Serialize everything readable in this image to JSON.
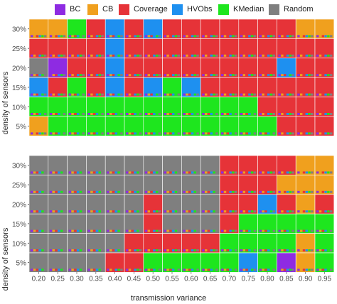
{
  "legend": [
    {
      "name": "BC",
      "color": "#8E2BE2"
    },
    {
      "name": "CB",
      "color": "#F0A01E"
    },
    {
      "name": "Coverage",
      "color": "#E63338"
    },
    {
      "name": "HVObs",
      "color": "#1E90F0"
    },
    {
      "name": "KMedian",
      "color": "#1EE61E"
    },
    {
      "name": "Random",
      "color": "#7F7F7F"
    }
  ],
  "chart_data": {
    "type": "heatmap",
    "xlabel": "transmission variance",
    "ylabel": "density of sensors",
    "x_ticks": [
      "0.20",
      "0.25",
      "0.30",
      "0.35",
      "0.40",
      "0.45",
      "0.50",
      "0.55",
      "0.60",
      "0.65",
      "0.70",
      "0.75",
      "0.80",
      "0.85",
      "0.90",
      "0.95"
    ],
    "y_ticks": [
      "5%",
      "10%",
      "15%",
      "20%",
      "25%",
      "30%"
    ],
    "series_order": [
      "BC",
      "CB",
      "Coverage",
      "HVObs",
      "KMedian",
      "Random"
    ],
    "note_rows": "rows listed from top (30%) to bottom (5%); each cell names the winning method",
    "panels": [
      {
        "winners": [
          [
            "CB",
            "CB",
            "KMedian",
            "Coverage",
            "HVObs",
            "Coverage",
            "HVObs",
            "Coverage",
            "Coverage",
            "Coverage",
            "Coverage",
            "Coverage",
            "Coverage",
            "Coverage",
            "CB",
            "CB"
          ],
          [
            "Coverage",
            "Coverage",
            "Coverage",
            "Coverage",
            "HVObs",
            "Coverage",
            "Coverage",
            "Coverage",
            "Coverage",
            "Coverage",
            "Coverage",
            "Coverage",
            "Coverage",
            "Coverage",
            "Coverage",
            "Coverage"
          ],
          [
            "Random",
            "BC",
            "Coverage",
            "Coverage",
            "HVObs",
            "Coverage",
            "Coverage",
            "Coverage",
            "Coverage",
            "Coverage",
            "Coverage",
            "Coverage",
            "Coverage",
            "HVObs",
            "Coverage",
            "Coverage"
          ],
          [
            "HVObs",
            "Coverage",
            "KMedian",
            "Coverage",
            "HVObs",
            "Coverage",
            "HVObs",
            "KMedian",
            "HVObs",
            "Coverage",
            "Coverage",
            "Coverage",
            "Coverage",
            "Coverage",
            "Coverage",
            "Coverage"
          ],
          [
            "KMedian",
            "KMedian",
            "KMedian",
            "KMedian",
            "KMedian",
            "KMedian",
            "KMedian",
            "KMedian",
            "KMedian",
            "KMedian",
            "KMedian",
            "KMedian",
            "Coverage",
            "Coverage",
            "Coverage",
            "Coverage"
          ],
          [
            "CB",
            "KMedian",
            "KMedian",
            "KMedian",
            "KMedian",
            "KMedian",
            "KMedian",
            "KMedian",
            "KMedian",
            "KMedian",
            "KMedian",
            "KMedian",
            "KMedian",
            "Coverage",
            "Coverage",
            "Coverage"
          ]
        ]
      },
      {
        "winners": [
          [
            "Random",
            "Random",
            "Random",
            "Random",
            "Random",
            "Random",
            "Random",
            "Random",
            "Random",
            "Random",
            "Coverage",
            "Coverage",
            "Coverage",
            "Coverage",
            "CB",
            "CB"
          ],
          [
            "Random",
            "Random",
            "Random",
            "Random",
            "Random",
            "Random",
            "Random",
            "Random",
            "Random",
            "Random",
            "Coverage",
            "Coverage",
            "Coverage",
            "CB",
            "CB",
            "CB"
          ],
          [
            "Random",
            "Random",
            "Random",
            "Random",
            "Random",
            "Random",
            "Coverage",
            "Random",
            "Random",
            "Random",
            "Coverage",
            "Coverage",
            "HVObs",
            "Coverage",
            "CB",
            "Coverage"
          ],
          [
            "Random",
            "Random",
            "Random",
            "Random",
            "Random",
            "Random",
            "Coverage",
            "Random",
            "Random",
            "Random",
            "Coverage",
            "KMedian",
            "KMedian",
            "KMedian",
            "KMedian",
            "KMedian"
          ],
          [
            "Random",
            "Random",
            "Random",
            "Random",
            "Random",
            "Coverage",
            "Coverage",
            "Coverage",
            "Coverage",
            "Coverage",
            "KMedian",
            "KMedian",
            "KMedian",
            "KMedian",
            "CB",
            "KMedian"
          ],
          [
            "Random",
            "Random",
            "Random",
            "Random",
            "Coverage",
            "Coverage",
            "KMedian",
            "KMedian",
            "KMedian",
            "KMedian",
            "KMedian",
            "HVObs",
            "KMedian",
            "BC",
            "CB",
            "KMedian"
          ]
        ]
      }
    ]
  }
}
